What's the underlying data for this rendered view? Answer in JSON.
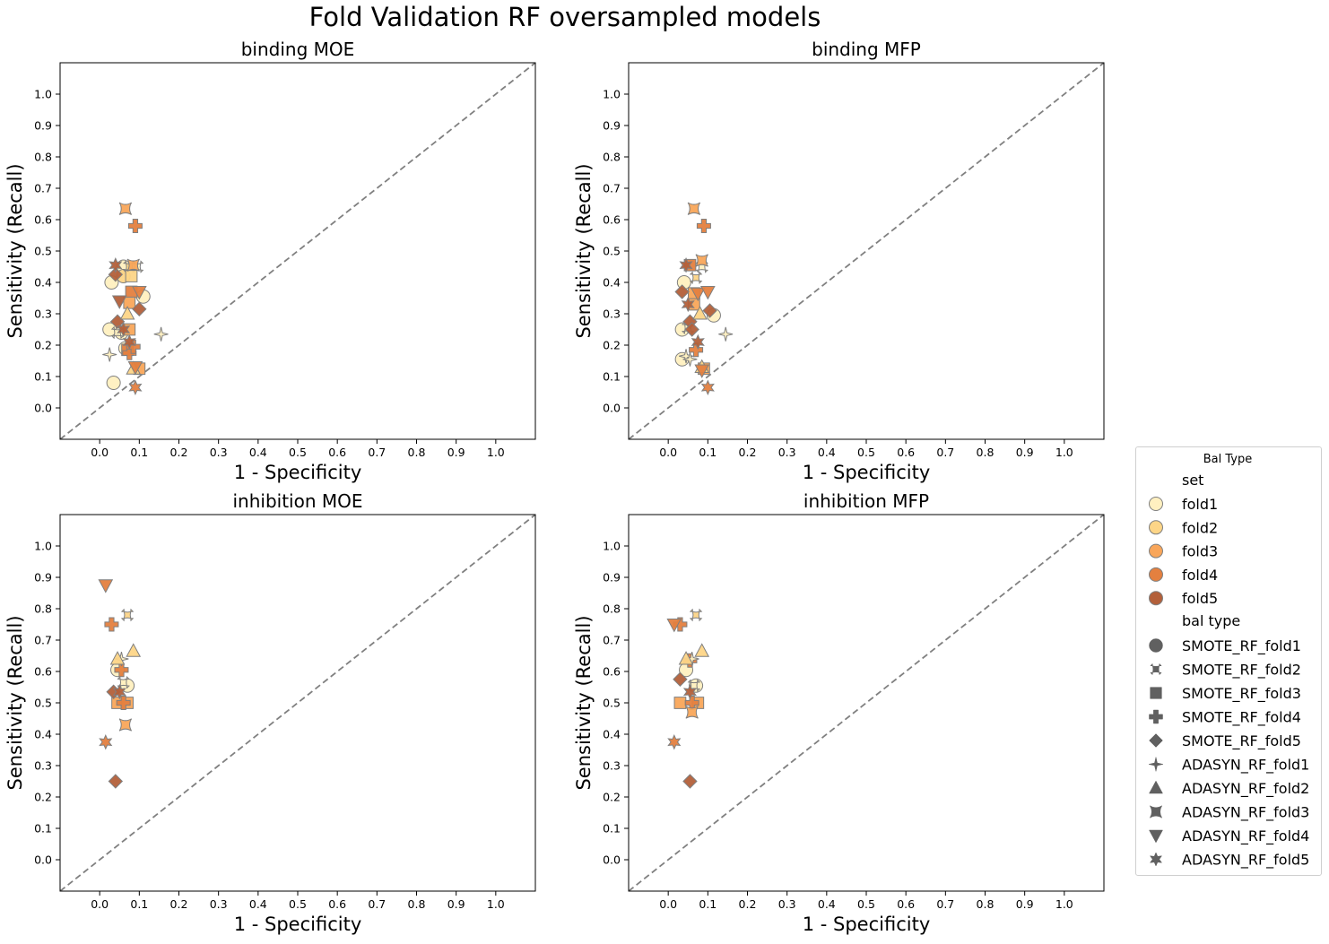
{
  "figure": {
    "suptitle": "Fold Validation RF oversampled models"
  },
  "legend": {
    "title": "Bal Type",
    "set_header": "set",
    "sets": [
      {
        "label": "fold1",
        "color": "#fff0c0"
      },
      {
        "label": "fold2",
        "color": "#fdd587"
      },
      {
        "label": "fold3",
        "color": "#f9a65a"
      },
      {
        "label": "fold4",
        "color": "#e4803f"
      },
      {
        "label": "fold5",
        "color": "#b3603a"
      }
    ],
    "type_header": "bal type",
    "types": [
      {
        "label": "SMOTE_RF_fold1",
        "marker": "circle"
      },
      {
        "label": "SMOTE_RF_fold2",
        "marker": "x"
      },
      {
        "label": "SMOTE_RF_fold3",
        "marker": "square"
      },
      {
        "label": "SMOTE_RF_fold4",
        "marker": "plus"
      },
      {
        "label": "SMOTE_RF_fold5",
        "marker": "diamond"
      },
      {
        "label": "ADASYN_RF_fold1",
        "marker": "star4"
      },
      {
        "label": "ADASYN_RF_fold2",
        "marker": "triangle-up"
      },
      {
        "label": "ADASYN_RF_fold3",
        "marker": "concave-square"
      },
      {
        "label": "ADASYN_RF_fold4",
        "marker": "triangle-down"
      },
      {
        "label": "ADASYN_RF_fold5",
        "marker": "star6"
      }
    ],
    "marker_edge_color": "#7f7f7f",
    "legend_marker_color": "#606060"
  },
  "chart_data": [
    {
      "type": "scatter",
      "title": "binding MOE",
      "xlabel": "1 - Specificity",
      "ylabel": "Sensitivity (Recall)",
      "xlim": [
        -0.1,
        1.1
      ],
      "ylim": [
        -0.1,
        1.1
      ],
      "xticks": [
        "0.0",
        "0.1",
        "0.2",
        "0.3",
        "0.4",
        "0.5",
        "0.6",
        "0.7",
        "0.8",
        "0.9",
        "1.0"
      ],
      "yticks": [
        "0.0",
        "0.1",
        "0.2",
        "0.3",
        "0.4",
        "0.5",
        "0.6",
        "0.7",
        "0.8",
        "0.9",
        "1.0"
      ],
      "diagonal": true,
      "points": [
        {
          "x": 0.03,
          "y": 0.4,
          "set": 0,
          "marker": "circle"
        },
        {
          "x": 0.025,
          "y": 0.25,
          "set": 0,
          "marker": "circle"
        },
        {
          "x": 0.035,
          "y": 0.08,
          "set": 0,
          "marker": "circle"
        },
        {
          "x": 0.06,
          "y": 0.45,
          "set": 0,
          "marker": "circle"
        },
        {
          "x": 0.11,
          "y": 0.355,
          "set": 0,
          "marker": "circle"
        },
        {
          "x": 0.065,
          "y": 0.19,
          "set": 0,
          "marker": "circle"
        },
        {
          "x": 0.055,
          "y": 0.24,
          "set": 0,
          "marker": "circle"
        },
        {
          "x": 0.06,
          "y": 0.42,
          "set": 1,
          "marker": "circle"
        },
        {
          "x": 0.075,
          "y": 0.45,
          "set": 1,
          "marker": "x"
        },
        {
          "x": 0.095,
          "y": 0.45,
          "set": 0,
          "marker": "x"
        },
        {
          "x": 0.045,
          "y": 0.24,
          "set": 0,
          "marker": "x"
        },
        {
          "x": 0.08,
          "y": 0.42,
          "set": 1,
          "marker": "square"
        },
        {
          "x": 0.08,
          "y": 0.37,
          "set": 3,
          "marker": "square"
        },
        {
          "x": 0.075,
          "y": 0.335,
          "set": 2,
          "marker": "square"
        },
        {
          "x": 0.075,
          "y": 0.25,
          "set": 2,
          "marker": "square"
        },
        {
          "x": 0.07,
          "y": 0.185,
          "set": 3,
          "marker": "square"
        },
        {
          "x": 0.1,
          "y": 0.125,
          "set": 2,
          "marker": "square"
        },
        {
          "x": 0.09,
          "y": 0.58,
          "set": 3,
          "marker": "plus"
        },
        {
          "x": 0.075,
          "y": 0.175,
          "set": 3,
          "marker": "plus"
        },
        {
          "x": 0.085,
          "y": 0.195,
          "set": 3,
          "marker": "plus"
        },
        {
          "x": 0.04,
          "y": 0.425,
          "set": 4,
          "marker": "diamond"
        },
        {
          "x": 0.045,
          "y": 0.275,
          "set": 4,
          "marker": "diamond"
        },
        {
          "x": 0.1,
          "y": 0.315,
          "set": 4,
          "marker": "diamond"
        },
        {
          "x": 0.155,
          "y": 0.235,
          "set": 0,
          "marker": "star4"
        },
        {
          "x": 0.025,
          "y": 0.17,
          "set": 0,
          "marker": "star4"
        },
        {
          "x": 0.07,
          "y": 0.3,
          "set": 1,
          "marker": "triangle-up"
        },
        {
          "x": 0.085,
          "y": 0.125,
          "set": 1,
          "marker": "triangle-up"
        },
        {
          "x": 0.065,
          "y": 0.635,
          "set": 2,
          "marker": "concave-square"
        },
        {
          "x": 0.085,
          "y": 0.455,
          "set": 2,
          "marker": "concave-square"
        },
        {
          "x": 0.05,
          "y": 0.34,
          "set": 4,
          "marker": "triangle-down"
        },
        {
          "x": 0.1,
          "y": 0.37,
          "set": 3,
          "marker": "triangle-down"
        },
        {
          "x": 0.09,
          "y": 0.13,
          "set": 3,
          "marker": "triangle-down"
        },
        {
          "x": 0.04,
          "y": 0.455,
          "set": 4,
          "marker": "star6"
        },
        {
          "x": 0.06,
          "y": 0.25,
          "set": 4,
          "marker": "star6"
        },
        {
          "x": 0.075,
          "y": 0.21,
          "set": 4,
          "marker": "star6"
        },
        {
          "x": 0.09,
          "y": 0.065,
          "set": 3,
          "marker": "star6"
        }
      ]
    },
    {
      "type": "scatter",
      "title": "binding MFP",
      "xlabel": "1 - Specificity",
      "ylabel": "Sensitivity (Recall)",
      "xlim": [
        -0.1,
        1.1
      ],
      "ylim": [
        -0.1,
        1.1
      ],
      "xticks": [
        "0.0",
        "0.1",
        "0.2",
        "0.3",
        "0.4",
        "0.5",
        "0.6",
        "0.7",
        "0.8",
        "0.9",
        "1.0"
      ],
      "yticks": [
        "0.0",
        "0.1",
        "0.2",
        "0.3",
        "0.4",
        "0.5",
        "0.6",
        "0.7",
        "0.8",
        "0.9",
        "1.0"
      ],
      "diagonal": true,
      "points": [
        {
          "x": 0.04,
          "y": 0.4,
          "set": 0,
          "marker": "circle"
        },
        {
          "x": 0.035,
          "y": 0.25,
          "set": 0,
          "marker": "circle"
        },
        {
          "x": 0.035,
          "y": 0.155,
          "set": 0,
          "marker": "circle"
        },
        {
          "x": 0.115,
          "y": 0.295,
          "set": 0,
          "marker": "circle"
        },
        {
          "x": 0.085,
          "y": 0.45,
          "set": 0,
          "marker": "x"
        },
        {
          "x": 0.07,
          "y": 0.415,
          "set": 1,
          "marker": "x"
        },
        {
          "x": 0.05,
          "y": 0.255,
          "set": 0,
          "marker": "x"
        },
        {
          "x": 0.055,
          "y": 0.455,
          "set": 3,
          "marker": "square"
        },
        {
          "x": 0.065,
          "y": 0.365,
          "set": 2,
          "marker": "square"
        },
        {
          "x": 0.065,
          "y": 0.33,
          "set": 2,
          "marker": "square"
        },
        {
          "x": 0.09,
          "y": 0.125,
          "set": 2,
          "marker": "square"
        },
        {
          "x": 0.09,
          "y": 0.58,
          "set": 3,
          "marker": "plus"
        },
        {
          "x": 0.07,
          "y": 0.185,
          "set": 3,
          "marker": "plus"
        },
        {
          "x": 0.035,
          "y": 0.37,
          "set": 4,
          "marker": "diamond"
        },
        {
          "x": 0.055,
          "y": 0.275,
          "set": 4,
          "marker": "diamond"
        },
        {
          "x": 0.06,
          "y": 0.25,
          "set": 4,
          "marker": "diamond"
        },
        {
          "x": 0.105,
          "y": 0.31,
          "set": 4,
          "marker": "diamond"
        },
        {
          "x": 0.145,
          "y": 0.235,
          "set": 0,
          "marker": "star4"
        },
        {
          "x": 0.045,
          "y": 0.165,
          "set": 0,
          "marker": "star4"
        },
        {
          "x": 0.055,
          "y": 0.155,
          "set": 0,
          "marker": "star4"
        },
        {
          "x": 0.08,
          "y": 0.3,
          "set": 1,
          "marker": "triangle-up"
        },
        {
          "x": 0.085,
          "y": 0.13,
          "set": 1,
          "marker": "triangle-up"
        },
        {
          "x": 0.065,
          "y": 0.635,
          "set": 2,
          "marker": "concave-square"
        },
        {
          "x": 0.085,
          "y": 0.47,
          "set": 2,
          "marker": "concave-square"
        },
        {
          "x": 0.075,
          "y": 0.365,
          "set": 3,
          "marker": "triangle-down"
        },
        {
          "x": 0.1,
          "y": 0.37,
          "set": 3,
          "marker": "triangle-down"
        },
        {
          "x": 0.085,
          "y": 0.12,
          "set": 3,
          "marker": "triangle-down"
        },
        {
          "x": 0.045,
          "y": 0.455,
          "set": 4,
          "marker": "star6"
        },
        {
          "x": 0.05,
          "y": 0.33,
          "set": 4,
          "marker": "star6"
        },
        {
          "x": 0.075,
          "y": 0.21,
          "set": 4,
          "marker": "star6"
        },
        {
          "x": 0.1,
          "y": 0.065,
          "set": 3,
          "marker": "star6"
        }
      ]
    },
    {
      "type": "scatter",
      "title": "inhibition MOE",
      "xlabel": "1 - Specificity",
      "ylabel": "Sensitivity (Recall)",
      "xlim": [
        -0.1,
        1.1
      ],
      "ylim": [
        -0.1,
        1.1
      ],
      "xticks": [
        "0.0",
        "0.1",
        "0.2",
        "0.3",
        "0.4",
        "0.5",
        "0.6",
        "0.7",
        "0.8",
        "0.9",
        "1.0"
      ],
      "yticks": [
        "0.0",
        "0.1",
        "0.2",
        "0.3",
        "0.4",
        "0.5",
        "0.6",
        "0.7",
        "0.8",
        "0.9",
        "1.0"
      ],
      "diagonal": true,
      "points": [
        {
          "x": 0.045,
          "y": 0.605,
          "set": 0,
          "marker": "circle"
        },
        {
          "x": 0.07,
          "y": 0.555,
          "set": 0,
          "marker": "circle"
        },
        {
          "x": 0.07,
          "y": 0.78,
          "set": 1,
          "marker": "x"
        },
        {
          "x": 0.06,
          "y": 0.565,
          "set": 0,
          "marker": "x"
        },
        {
          "x": 0.045,
          "y": 0.5,
          "set": 2,
          "marker": "square"
        },
        {
          "x": 0.07,
          "y": 0.5,
          "set": 2,
          "marker": "square"
        },
        {
          "x": 0.03,
          "y": 0.75,
          "set": 3,
          "marker": "plus"
        },
        {
          "x": 0.055,
          "y": 0.605,
          "set": 3,
          "marker": "plus"
        },
        {
          "x": 0.06,
          "y": 0.5,
          "set": 3,
          "marker": "plus"
        },
        {
          "x": 0.035,
          "y": 0.535,
          "set": 4,
          "marker": "diamond"
        },
        {
          "x": 0.04,
          "y": 0.25,
          "set": 4,
          "marker": "diamond"
        },
        {
          "x": 0.055,
          "y": 0.64,
          "set": 0,
          "marker": "star4"
        },
        {
          "x": 0.045,
          "y": 0.64,
          "set": 1,
          "marker": "triangle-up"
        },
        {
          "x": 0.085,
          "y": 0.665,
          "set": 1,
          "marker": "triangle-up"
        },
        {
          "x": 0.065,
          "y": 0.43,
          "set": 2,
          "marker": "concave-square"
        },
        {
          "x": 0.015,
          "y": 0.875,
          "set": 3,
          "marker": "triangle-down"
        },
        {
          "x": 0.05,
          "y": 0.535,
          "set": 4,
          "marker": "star6"
        },
        {
          "x": 0.015,
          "y": 0.375,
          "set": 3,
          "marker": "star6"
        }
      ]
    },
    {
      "type": "scatter",
      "title": "inhibition MFP",
      "xlabel": "1 - Specificity",
      "ylabel": "Sensitivity (Recall)",
      "xlim": [
        -0.1,
        1.1
      ],
      "ylim": [
        -0.1,
        1.1
      ],
      "xticks": [
        "0.0",
        "0.1",
        "0.2",
        "0.3",
        "0.4",
        "0.5",
        "0.6",
        "0.7",
        "0.8",
        "0.9",
        "1.0"
      ],
      "yticks": [
        "0.0",
        "0.1",
        "0.2",
        "0.3",
        "0.4",
        "0.5",
        "0.6",
        "0.7",
        "0.8",
        "0.9",
        "1.0"
      ],
      "diagonal": true,
      "points": [
        {
          "x": 0.045,
          "y": 0.605,
          "set": 0,
          "marker": "circle"
        },
        {
          "x": 0.07,
          "y": 0.555,
          "set": 0,
          "marker": "circle"
        },
        {
          "x": 0.07,
          "y": 0.78,
          "set": 1,
          "marker": "x"
        },
        {
          "x": 0.065,
          "y": 0.555,
          "set": 0,
          "marker": "x"
        },
        {
          "x": 0.03,
          "y": 0.5,
          "set": 2,
          "marker": "square"
        },
        {
          "x": 0.075,
          "y": 0.5,
          "set": 2,
          "marker": "square"
        },
        {
          "x": 0.03,
          "y": 0.75,
          "set": 3,
          "marker": "plus"
        },
        {
          "x": 0.055,
          "y": 0.635,
          "set": 3,
          "marker": "plus"
        },
        {
          "x": 0.06,
          "y": 0.5,
          "set": 3,
          "marker": "plus"
        },
        {
          "x": 0.03,
          "y": 0.575,
          "set": 4,
          "marker": "diamond"
        },
        {
          "x": 0.055,
          "y": 0.25,
          "set": 4,
          "marker": "diamond"
        },
        {
          "x": 0.06,
          "y": 0.64,
          "set": 0,
          "marker": "star4"
        },
        {
          "x": 0.045,
          "y": 0.64,
          "set": 1,
          "marker": "triangle-up"
        },
        {
          "x": 0.085,
          "y": 0.665,
          "set": 1,
          "marker": "triangle-up"
        },
        {
          "x": 0.06,
          "y": 0.47,
          "set": 2,
          "marker": "concave-square"
        },
        {
          "x": 0.015,
          "y": 0.75,
          "set": 3,
          "marker": "triangle-down"
        },
        {
          "x": 0.055,
          "y": 0.535,
          "set": 4,
          "marker": "star6"
        },
        {
          "x": 0.015,
          "y": 0.375,
          "set": 3,
          "marker": "star6"
        }
      ]
    }
  ]
}
